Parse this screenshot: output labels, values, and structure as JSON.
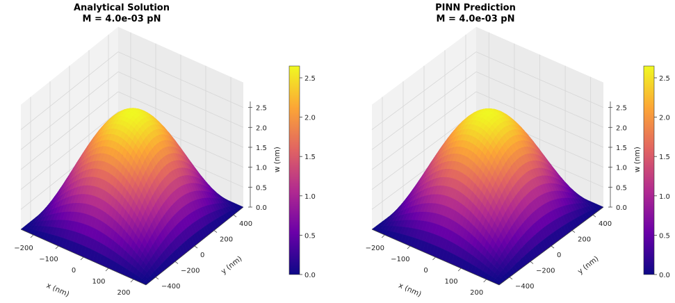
{
  "colorscale": [
    "#0d0887",
    "#6a00a8",
    "#b12a90",
    "#e16462",
    "#fca636",
    "#f0f921"
  ],
  "chart_data": [
    {
      "type": "surface3d",
      "title": "Analytical Solution",
      "subtitle": "M = 4.0e-03 pN",
      "xlabel": "x (nm)",
      "ylabel": "y (nm)",
      "zlabel": "w (nm)",
      "function": "w = 2.65 · cos(π x / 500) · cos(π y / 1000)",
      "xlim": [
        -250,
        250
      ],
      "ylim": [
        -500,
        500
      ],
      "zlim": [
        0,
        2.65
      ],
      "peak": 2.65,
      "x_ticks": [
        "−200",
        "−100",
        "0",
        "100",
        "200"
      ],
      "x_tick_values": [
        -200,
        -100,
        0,
        100,
        200
      ],
      "y_ticks": [
        "−400",
        "−200",
        "0",
        "200",
        "400"
      ],
      "y_tick_values": [
        -400,
        -200,
        0,
        200,
        400
      ],
      "z_ticks": [
        "0.0",
        "0.5",
        "1.0",
        "1.5",
        "2.0",
        "2.5"
      ],
      "z_tick_values": [
        0,
        0.5,
        1.0,
        1.5,
        2.0,
        2.5
      ],
      "colorbar": {
        "min": 0,
        "max": 2.65,
        "ticks": [
          "0.0",
          "0.5",
          "1.0",
          "1.5",
          "2.0",
          "2.5"
        ],
        "tick_values": [
          0,
          0.5,
          1.0,
          1.5,
          2.0,
          2.5
        ]
      }
    },
    {
      "type": "surface3d",
      "title": "PINN Prediction",
      "subtitle": "M = 4.0e-03 pN",
      "xlabel": "x (nm)",
      "ylabel": "y (nm)",
      "zlabel": "w (nm)",
      "function": "w ≈ 2.64 · cos(π x / 500) · cos(π y / 1000)",
      "xlim": [
        -250,
        250
      ],
      "ylim": [
        -500,
        500
      ],
      "zlim": [
        0,
        2.65
      ],
      "peak": 2.64,
      "x_ticks": [
        "−200",
        "−100",
        "0",
        "100",
        "200"
      ],
      "x_tick_values": [
        -200,
        -100,
        0,
        100,
        200
      ],
      "y_ticks": [
        "−400",
        "−200",
        "0",
        "200",
        "400"
      ],
      "y_tick_values": [
        -400,
        -200,
        0,
        200,
        400
      ],
      "z_ticks": [
        "0.0",
        "0.5",
        "1.0",
        "1.5",
        "2.0",
        "2.5"
      ],
      "z_tick_values": [
        0,
        0.5,
        1.0,
        1.5,
        2.0,
        2.5
      ],
      "colorbar": {
        "min": 0,
        "max": 2.65,
        "ticks": [
          "0.0",
          "0.5",
          "1.0",
          "1.5",
          "2.0",
          "2.5"
        ],
        "tick_values": [
          0,
          0.5,
          1.0,
          1.5,
          2.0,
          2.5
        ]
      }
    }
  ]
}
